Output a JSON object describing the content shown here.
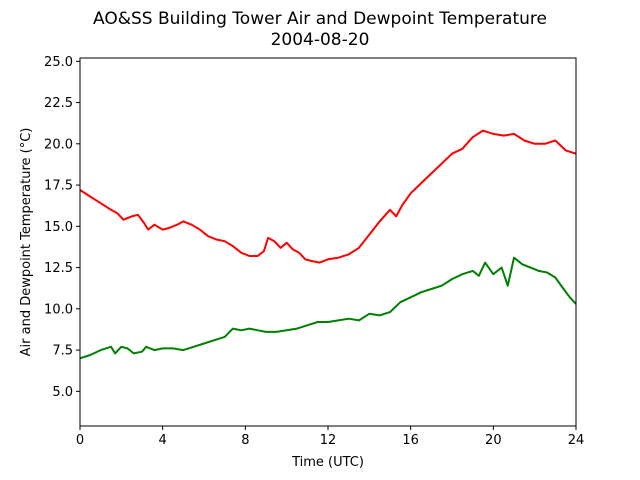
{
  "chart_data": {
    "type": "line",
    "title": "AO&SS Building Tower Air and Dewpoint Temperature",
    "subtitle": "2004-08-20",
    "xlabel": "Time (UTC)",
    "ylabel": "Air and Dewpoint Temperature (°C)",
    "xlim": [
      0,
      24
    ],
    "ylim": [
      2.9,
      25.2
    ],
    "x_ticks": [
      "0",
      "4",
      "8",
      "12",
      "16",
      "20",
      "24"
    ],
    "y_ticks": [
      "5.0",
      "7.5",
      "10.0",
      "12.5",
      "15.0",
      "17.5",
      "20.0",
      "22.5",
      "25.0"
    ],
    "grid": false,
    "series": [
      {
        "color": "#ff0000",
        "points": [
          [
            0,
            17.2
          ],
          [
            0.5,
            16.8
          ],
          [
            1,
            16.4
          ],
          [
            1.5,
            16.0
          ],
          [
            1.8,
            15.8
          ],
          [
            2.1,
            15.4
          ],
          [
            2.5,
            15.6
          ],
          [
            2.8,
            15.7
          ],
          [
            3.1,
            15.2
          ],
          [
            3.3,
            14.8
          ],
          [
            3.6,
            15.1
          ],
          [
            4,
            14.8
          ],
          [
            4.3,
            14.9
          ],
          [
            4.7,
            15.1
          ],
          [
            5,
            15.3
          ],
          [
            5.4,
            15.1
          ],
          [
            5.8,
            14.8
          ],
          [
            6.2,
            14.4
          ],
          [
            6.6,
            14.2
          ],
          [
            7,
            14.1
          ],
          [
            7.4,
            13.8
          ],
          [
            7.8,
            13.4
          ],
          [
            8.2,
            13.2
          ],
          [
            8.6,
            13.2
          ],
          [
            8.9,
            13.5
          ],
          [
            9.1,
            14.3
          ],
          [
            9.4,
            14.1
          ],
          [
            9.7,
            13.7
          ],
          [
            10,
            14.0
          ],
          [
            10.3,
            13.6
          ],
          [
            10.6,
            13.4
          ],
          [
            10.9,
            13.0
          ],
          [
            11.2,
            12.9
          ],
          [
            11.6,
            12.8
          ],
          [
            12,
            13.0
          ],
          [
            12.5,
            13.1
          ],
          [
            13,
            13.3
          ],
          [
            13.5,
            13.7
          ],
          [
            14,
            14.5
          ],
          [
            14.5,
            15.3
          ],
          [
            15,
            16.0
          ],
          [
            15.3,
            15.6
          ],
          [
            15.6,
            16.3
          ],
          [
            16,
            17.0
          ],
          [
            16.5,
            17.6
          ],
          [
            17,
            18.2
          ],
          [
            17.5,
            18.8
          ],
          [
            18,
            19.4
          ],
          [
            18.5,
            19.7
          ],
          [
            19,
            20.4
          ],
          [
            19.5,
            20.8
          ],
          [
            20,
            20.6
          ],
          [
            20.5,
            20.5
          ],
          [
            21,
            20.6
          ],
          [
            21.5,
            20.2
          ],
          [
            22,
            20.0
          ],
          [
            22.5,
            20.0
          ],
          [
            23,
            20.2
          ],
          [
            23.5,
            19.6
          ],
          [
            24,
            19.4
          ]
        ]
      },
      {
        "color": "#008000",
        "points": [
          [
            0,
            7.0
          ],
          [
            0.5,
            7.2
          ],
          [
            1,
            7.5
          ],
          [
            1.5,
            7.7
          ],
          [
            1.7,
            7.3
          ],
          [
            2,
            7.7
          ],
          [
            2.3,
            7.6
          ],
          [
            2.6,
            7.3
          ],
          [
            3,
            7.4
          ],
          [
            3.2,
            7.7
          ],
          [
            3.6,
            7.5
          ],
          [
            4,
            7.6
          ],
          [
            4.5,
            7.6
          ],
          [
            5,
            7.5
          ],
          [
            5.5,
            7.7
          ],
          [
            6,
            7.9
          ],
          [
            6.5,
            8.1
          ],
          [
            7,
            8.3
          ],
          [
            7.4,
            8.8
          ],
          [
            7.8,
            8.7
          ],
          [
            8.2,
            8.8
          ],
          [
            8.6,
            8.7
          ],
          [
            9,
            8.6
          ],
          [
            9.5,
            8.6
          ],
          [
            10,
            8.7
          ],
          [
            10.5,
            8.8
          ],
          [
            11,
            9.0
          ],
          [
            11.5,
            9.2
          ],
          [
            12,
            9.2
          ],
          [
            12.5,
            9.3
          ],
          [
            13,
            9.4
          ],
          [
            13.5,
            9.3
          ],
          [
            14,
            9.7
          ],
          [
            14.5,
            9.6
          ],
          [
            15,
            9.8
          ],
          [
            15.5,
            10.4
          ],
          [
            16,
            10.7
          ],
          [
            16.5,
            11.0
          ],
          [
            17,
            11.2
          ],
          [
            17.5,
            11.4
          ],
          [
            18,
            11.8
          ],
          [
            18.5,
            12.1
          ],
          [
            19,
            12.3
          ],
          [
            19.3,
            12.0
          ],
          [
            19.6,
            12.8
          ],
          [
            20,
            12.1
          ],
          [
            20.4,
            12.5
          ],
          [
            20.7,
            11.4
          ],
          [
            21,
            13.1
          ],
          [
            21.4,
            12.7
          ],
          [
            21.8,
            12.5
          ],
          [
            22.2,
            12.3
          ],
          [
            22.6,
            12.2
          ],
          [
            23,
            11.9
          ],
          [
            23.4,
            11.2
          ],
          [
            23.7,
            10.7
          ],
          [
            24,
            10.3
          ]
        ]
      }
    ]
  }
}
